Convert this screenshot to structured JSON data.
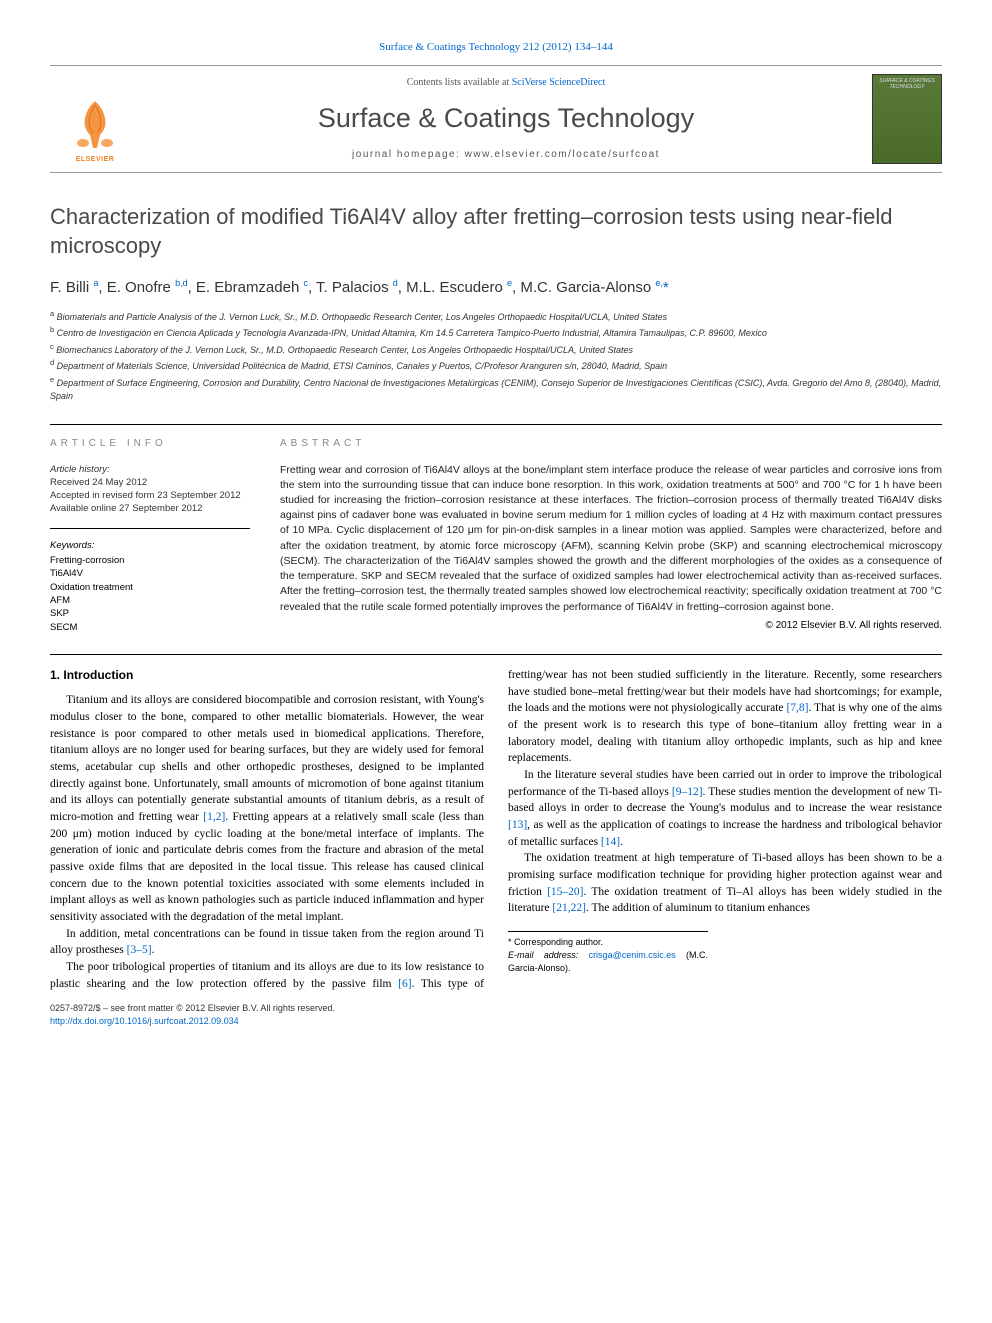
{
  "top_citation": "Surface & Coatings Technology 212 (2012) 134–144",
  "header": {
    "contents_prefix": "Contents lists available at ",
    "contents_link": "SciVerse ScienceDirect",
    "journal_title": "Surface & Coatings Technology",
    "homepage": "journal homepage: www.elsevier.com/locate/surfcoat",
    "publisher": "ELSEVIER",
    "cover_text": "SURFACE & COATINGS TECHNOLOGY"
  },
  "article": {
    "title": "Characterization of modified Ti6Al4V alloy after fretting–corrosion tests using near-field microscopy",
    "authors_html": "F. Billi <sup>a</sup>, E. Onofre <sup>b,d</sup>, E. Ebramzadeh <sup>c</sup>, T. Palacios <sup>d</sup>, M.L. Escudero <sup>e</sup>, M.C. Garcia-Alonso <sup>e,</sup><span class='corr'>*</span>",
    "affiliations": [
      "a Biomaterials and Particle Analysis of the J. Vernon Luck, Sr., M.D. Orthopaedic Research Center, Los Angeles Orthopaedic Hospital/UCLA, United States",
      "b Centro de Investigación en Ciencia Aplicada y Tecnología Avanzada-IPN, Unidad Altamira, Km 14.5 Carretera Tampico-Puerto Industrial, Altamira Tamaulipas, C.P. 89600, Mexico",
      "c Biomechanics Laboratory of the J. Vernon Luck, Sr., M.D. Orthopaedic Research Center, Los Angeles Orthopaedic Hospital/UCLA, United States",
      "d Department of Materials Science, Universidad Politécnica de Madrid, ETSI Caminos, Canales y Puertos, C/Profesor Aranguren s/n, 28040, Madrid, Spain",
      "e Department of Surface Engineering, Corrosion and Durability, Centro Nacional de Investigaciones Metalúrgicas (CENIM), Consejo Superior de Investigaciones Científicas (CSIC), Avda. Gregorio del Amo 8, (28040), Madrid, Spain"
    ]
  },
  "info": {
    "header": "ARTICLE INFO",
    "history_label": "Article history:",
    "history": [
      "Received 24 May 2012",
      "Accepted in revised form 23 September 2012",
      "Available online 27 September 2012"
    ],
    "keywords_label": "Keywords:",
    "keywords": [
      "Fretting-corrosion",
      "Ti6Al4V",
      "Oxidation treatment",
      "AFM",
      "SKP",
      "SECM"
    ]
  },
  "abstract": {
    "header": "ABSTRACT",
    "text": "Fretting wear and corrosion of Ti6Al4V alloys at the bone/implant stem interface produce the release of wear particles and corrosive ions from the stem into the surrounding tissue that can induce bone resorption. In this work, oxidation treatments at 500° and 700 °C for 1 h have been studied for increasing the friction–corrosion resistance at these interfaces. The friction–corrosion process of thermally treated Ti6Al4V disks against pins of cadaver bone was evaluated in bovine serum medium for 1 million cycles of loading at 4 Hz with maximum contact pressures of 10 MPa. Cyclic displacement of 120 μm for pin-on-disk samples in a linear motion was applied. Samples were characterized, before and after the oxidation treatment, by atomic force microscopy (AFM), scanning Kelvin probe (SKP) and scanning electrochemical microscopy (SECM). The characterization of the Ti6Al4V samples showed the growth and the different morphologies of the oxides as a consequence of the temperature. SKP and SECM revealed that the surface of oxidized samples had lower electrochemical activity than as-received surfaces. After the fretting–corrosion test, the thermally treated samples showed low electrochemical reactivity; specifically oxidation treatment at 700 °C revealed that the rutile scale formed potentially improves the performance of Ti6Al4V in fretting–corrosion against bone.",
    "copyright": "© 2012 Elsevier B.V. All rights reserved."
  },
  "body": {
    "section_number": "1.",
    "section_title": "Introduction",
    "paragraphs": [
      "Titanium and its alloys are considered biocompatible and corrosion resistant, with Young's modulus closer to the bone, compared to other metallic biomaterials. However, the wear resistance is poor compared to other metals used in biomedical applications. Therefore, titanium alloys are no longer used for bearing surfaces, but they are widely used for femoral stems, acetabular cup shells and other orthopedic prostheses, designed to be implanted directly against bone. Unfortunately, small amounts of micromotion of bone against titanium and its alloys can potentially generate substantial amounts of titanium debris, as a result of micro-motion and fretting wear <span class='ref-link'>[1,2]</span>. Fretting appears at a relatively small scale (less than 200 μm) motion induced by cyclic loading at the bone/metal interface of implants. The generation of ionic and particulate debris comes from the fracture and abrasion of the metal passive oxide films that are deposited in the local tissue. This release has caused clinical concern due to the known potential toxicities associated with some elements included in implant alloys as well as known pathologies such as particle induced inflammation and hyper sensitivity associated with the degradation of the metal implant.",
      "In addition, metal concentrations can be found in tissue taken from the region around Ti alloy prostheses <span class='ref-link'>[3–5]</span>.",
      "The poor tribological properties of titanium and its alloys are due to its low resistance to plastic shearing and the low protection offered by the passive film <span class='ref-link'>[6]</span>. This type of fretting/wear has not been studied sufficiently in the literature. Recently, some researchers have studied bone–metal fretting/wear but their models have had shortcomings; for example, the loads and the motions were not physiologically accurate <span class='ref-link'>[7,8]</span>. That is why one of the aims of the present work is to research this type of bone–titanium alloy fretting wear in a laboratory model, dealing with titanium alloy orthopedic implants, such as hip and knee replacements.",
      "In the literature several studies have been carried out in order to improve the tribological performance of the Ti-based alloys <span class='ref-link'>[9–12]</span>. These studies mention the development of new Ti-based alloys in order to decrease the Young's modulus and to increase the wear resistance <span class='ref-link'>[13]</span>, as well as the application of coatings to increase the hardness and tribological behavior of metallic surfaces <span class='ref-link'>[14]</span>.",
      "The oxidation treatment at high temperature of Ti-based alloys has been shown to be a promising surface modification technique for providing higher protection against wear and friction <span class='ref-link'>[15–20]</span>. The oxidation treatment of Ti–Al alloys has been widely studied in the literature <span class='ref-link'>[21,22]</span>. The addition of aluminum to titanium enhances"
    ]
  },
  "footer": {
    "corr_label": "* Corresponding author.",
    "email_label": "E-mail address: ",
    "email": "crisga@cenim.csic.es",
    "email_name": " (M.C. Garcia-Alonso).",
    "copyright_line": "0257-8972/$ – see front matter © 2012 Elsevier B.V. All rights reserved.",
    "doi": "http://dx.doi.org/10.1016/j.surfcoat.2012.09.034"
  },
  "colors": {
    "link": "#0066cc",
    "publisher_orange": "#f58220",
    "cover_bg": "#5a7a3a",
    "heading_gray": "#888888"
  }
}
